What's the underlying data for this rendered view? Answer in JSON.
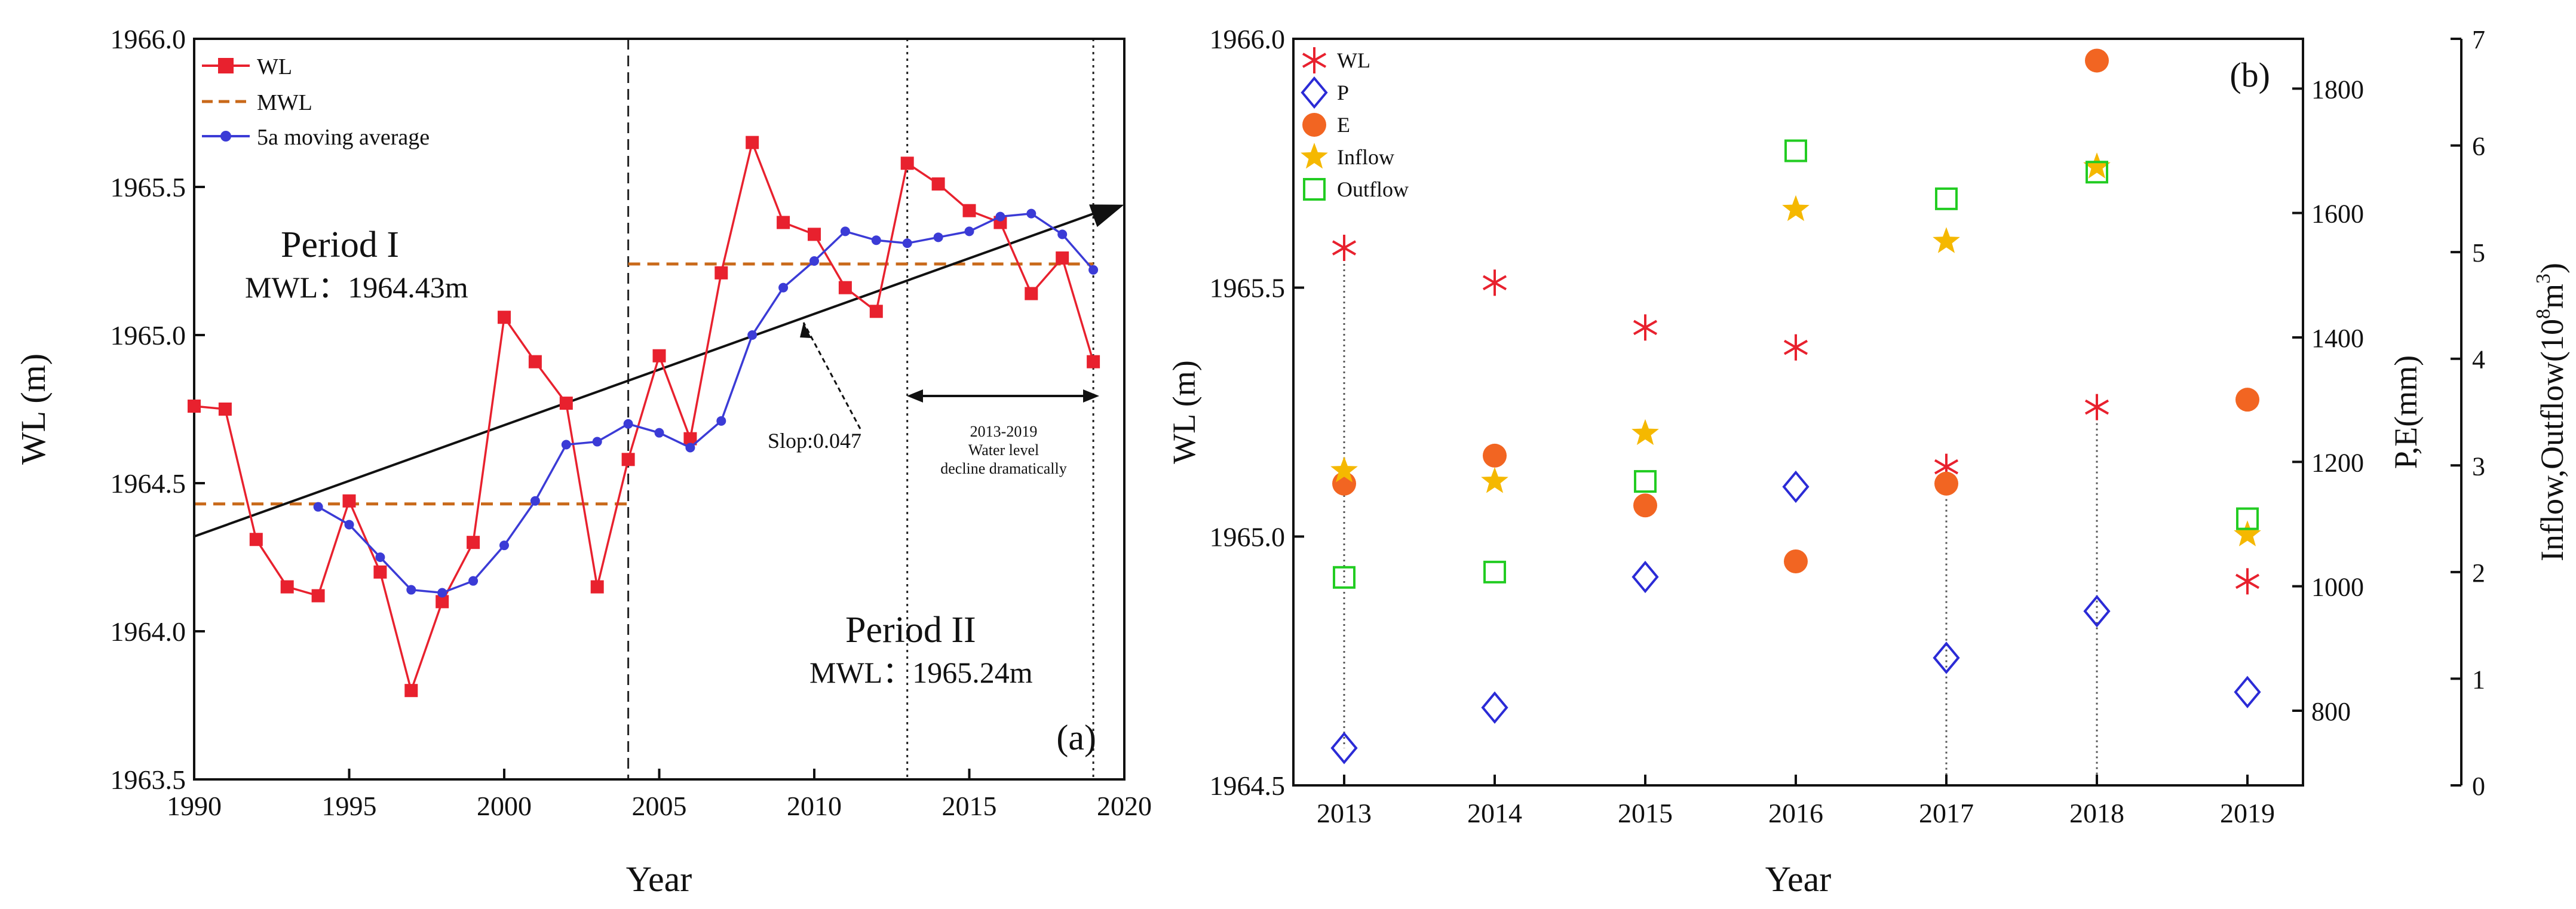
{
  "chart_data": [
    {
      "type": "line",
      "panel_label": "(a)",
      "xlabel": "Year",
      "ylabel": "WL (m)",
      "xlim": [
        1990,
        2020
      ],
      "ylim": [
        1963.5,
        1966.0
      ],
      "xticks": [
        1990,
        1995,
        2000,
        2005,
        2010,
        2015,
        2020
      ],
      "yticks": [
        1963.5,
        1964.0,
        1964.5,
        1965.0,
        1965.5,
        1966.0
      ],
      "ytick_labels": [
        "1963.5",
        "1964.0",
        "1964.5",
        "1965.0",
        "1965.5",
        "1966.0"
      ],
      "legend": [
        "WL",
        "MWL",
        "5a moving average"
      ],
      "legend_position": "top-left",
      "series": [
        {
          "name": "WL",
          "color": "#e8212e",
          "marker": "square",
          "x": [
            1990,
            1991,
            1992,
            1993,
            1994,
            1995,
            1996,
            1997,
            1998,
            1999,
            2000,
            2001,
            2002,
            2003,
            2004,
            2005,
            2006,
            2007,
            2008,
            2009,
            2010,
            2011,
            2012,
            2013,
            2014,
            2015,
            2016,
            2017,
            2018,
            2019
          ],
          "y": [
            1964.76,
            1964.75,
            1964.31,
            1964.15,
            1964.12,
            1964.44,
            1964.2,
            1963.8,
            1964.1,
            1964.3,
            1965.06,
            1964.91,
            1964.77,
            1964.15,
            1964.58,
            1964.93,
            1964.65,
            1965.21,
            1965.65,
            1965.38,
            1965.34,
            1965.16,
            1965.08,
            1965.58,
            1965.51,
            1965.42,
            1965.38,
            1965.14,
            1965.26,
            1964.91
          ]
        },
        {
          "name": "5a moving average",
          "color": "#3b3bd6",
          "marker": "circle",
          "x": [
            1994,
            1995,
            1996,
            1997,
            1998,
            1999,
            2000,
            2001,
            2002,
            2003,
            2004,
            2005,
            2006,
            2007,
            2008,
            2009,
            2010,
            2011,
            2012,
            2013,
            2014,
            2015,
            2016,
            2017,
            2018,
            2019
          ],
          "y": [
            1964.42,
            1964.36,
            1964.25,
            1964.14,
            1964.13,
            1964.17,
            1964.29,
            1964.44,
            1964.63,
            1964.64,
            1964.7,
            1964.67,
            1964.62,
            1964.71,
            1965.0,
            1965.16,
            1965.25,
            1965.35,
            1965.32,
            1965.31,
            1965.33,
            1965.35,
            1965.4,
            1965.41,
            1965.34,
            1965.22
          ]
        }
      ],
      "mwl_segments": [
        {
          "name": "MWL",
          "color": "#c9691a",
          "x": [
            1990,
            2004
          ],
          "y": 1964.43
        },
        {
          "name": "MWL",
          "color": "#c9691a",
          "x": [
            2004,
            2019
          ],
          "y": 1965.24
        }
      ],
      "trend_line": {
        "x": [
          1990,
          2019.8
        ],
        "y": [
          1964.32,
          1965.44
        ],
        "label": "Slop:0.047"
      },
      "vlines": [
        {
          "x": 2004,
          "style": "dashed"
        },
        {
          "x": 2013,
          "style": "dotted"
        },
        {
          "x": 2019,
          "style": "dotted"
        }
      ],
      "annotations": {
        "period1": "Period I",
        "period1_mwl": "MWL：1964.43m",
        "period2": "Period II",
        "period2_mwl": "MWL：1965.24m",
        "range_label_1": "2013-2019",
        "range_label_2": "Water level",
        "range_label_3": "decline dramatically",
        "color_period": "#2020c8"
      }
    },
    {
      "type": "scatter",
      "panel_label": "(b)",
      "xlabel": "Year",
      "ylabel": "WL (m)",
      "ylabel_right1": "P,E(mm)",
      "ylabel_right2_prefix": "Inflow,Outflow(10",
      "ylabel_right2_sup1": "8",
      "ylabel_right2_mid": "m",
      "ylabel_right2_sup2": "3",
      "ylabel_right2_suffix": ")",
      "categories": [
        "2013",
        "2014",
        "2015",
        "2016",
        "2017",
        "2018",
        "2019"
      ],
      "ylim": [
        1964.5,
        1966.0
      ],
      "yticks": [
        "1964.5",
        "1965.0",
        "1965.5",
        "1966.0"
      ],
      "ylim_right1": [
        680,
        1880
      ],
      "yticks_right1": [
        "800",
        "1000",
        "1200",
        "1400",
        "1600",
        "1800"
      ],
      "ylim_right2": [
        0,
        7
      ],
      "yticks_right2": [
        "0",
        "1",
        "2",
        "3",
        "4",
        "5",
        "6",
        "7"
      ],
      "legend": [
        "WL",
        "P",
        "E",
        "Inflow",
        "Outflow"
      ],
      "legend_position": "top-left",
      "series": [
        {
          "name": "WL",
          "axis": "left",
          "marker": "asterisk",
          "color": "#e8212e",
          "values": [
            1965.58,
            1965.51,
            1965.42,
            1965.38,
            1965.14,
            1965.26,
            1964.91
          ]
        },
        {
          "name": "P",
          "axis": "right1",
          "marker": "diamond",
          "color": "#2b2bd6",
          "values": [
            740,
            805,
            1015,
            1160,
            885,
            960,
            830
          ]
        },
        {
          "name": "E",
          "axis": "right1",
          "marker": "circle",
          "color": "#f26522",
          "values": [
            1165,
            1210,
            1130,
            1040,
            1165,
            1845,
            1300
          ]
        },
        {
          "name": "Inflow",
          "axis": "right2",
          "marker": "star",
          "color": "#f5b800",
          "values": [
            2.95,
            2.85,
            3.3,
            5.4,
            5.1,
            5.8,
            2.35
          ]
        },
        {
          "name": "Outflow",
          "axis": "right2",
          "marker": "square-open",
          "color": "#22cc22",
          "values": [
            1.95,
            2.0,
            2.85,
            5.95,
            5.5,
            5.75,
            2.5
          ]
        }
      ],
      "drop_lines": [
        {
          "category": "2013",
          "from": "WL",
          "to": "P"
        },
        {
          "category": "2017",
          "from": "WL",
          "to": "axis"
        },
        {
          "category": "2018",
          "from": "WL",
          "to": "axis"
        }
      ]
    }
  ]
}
